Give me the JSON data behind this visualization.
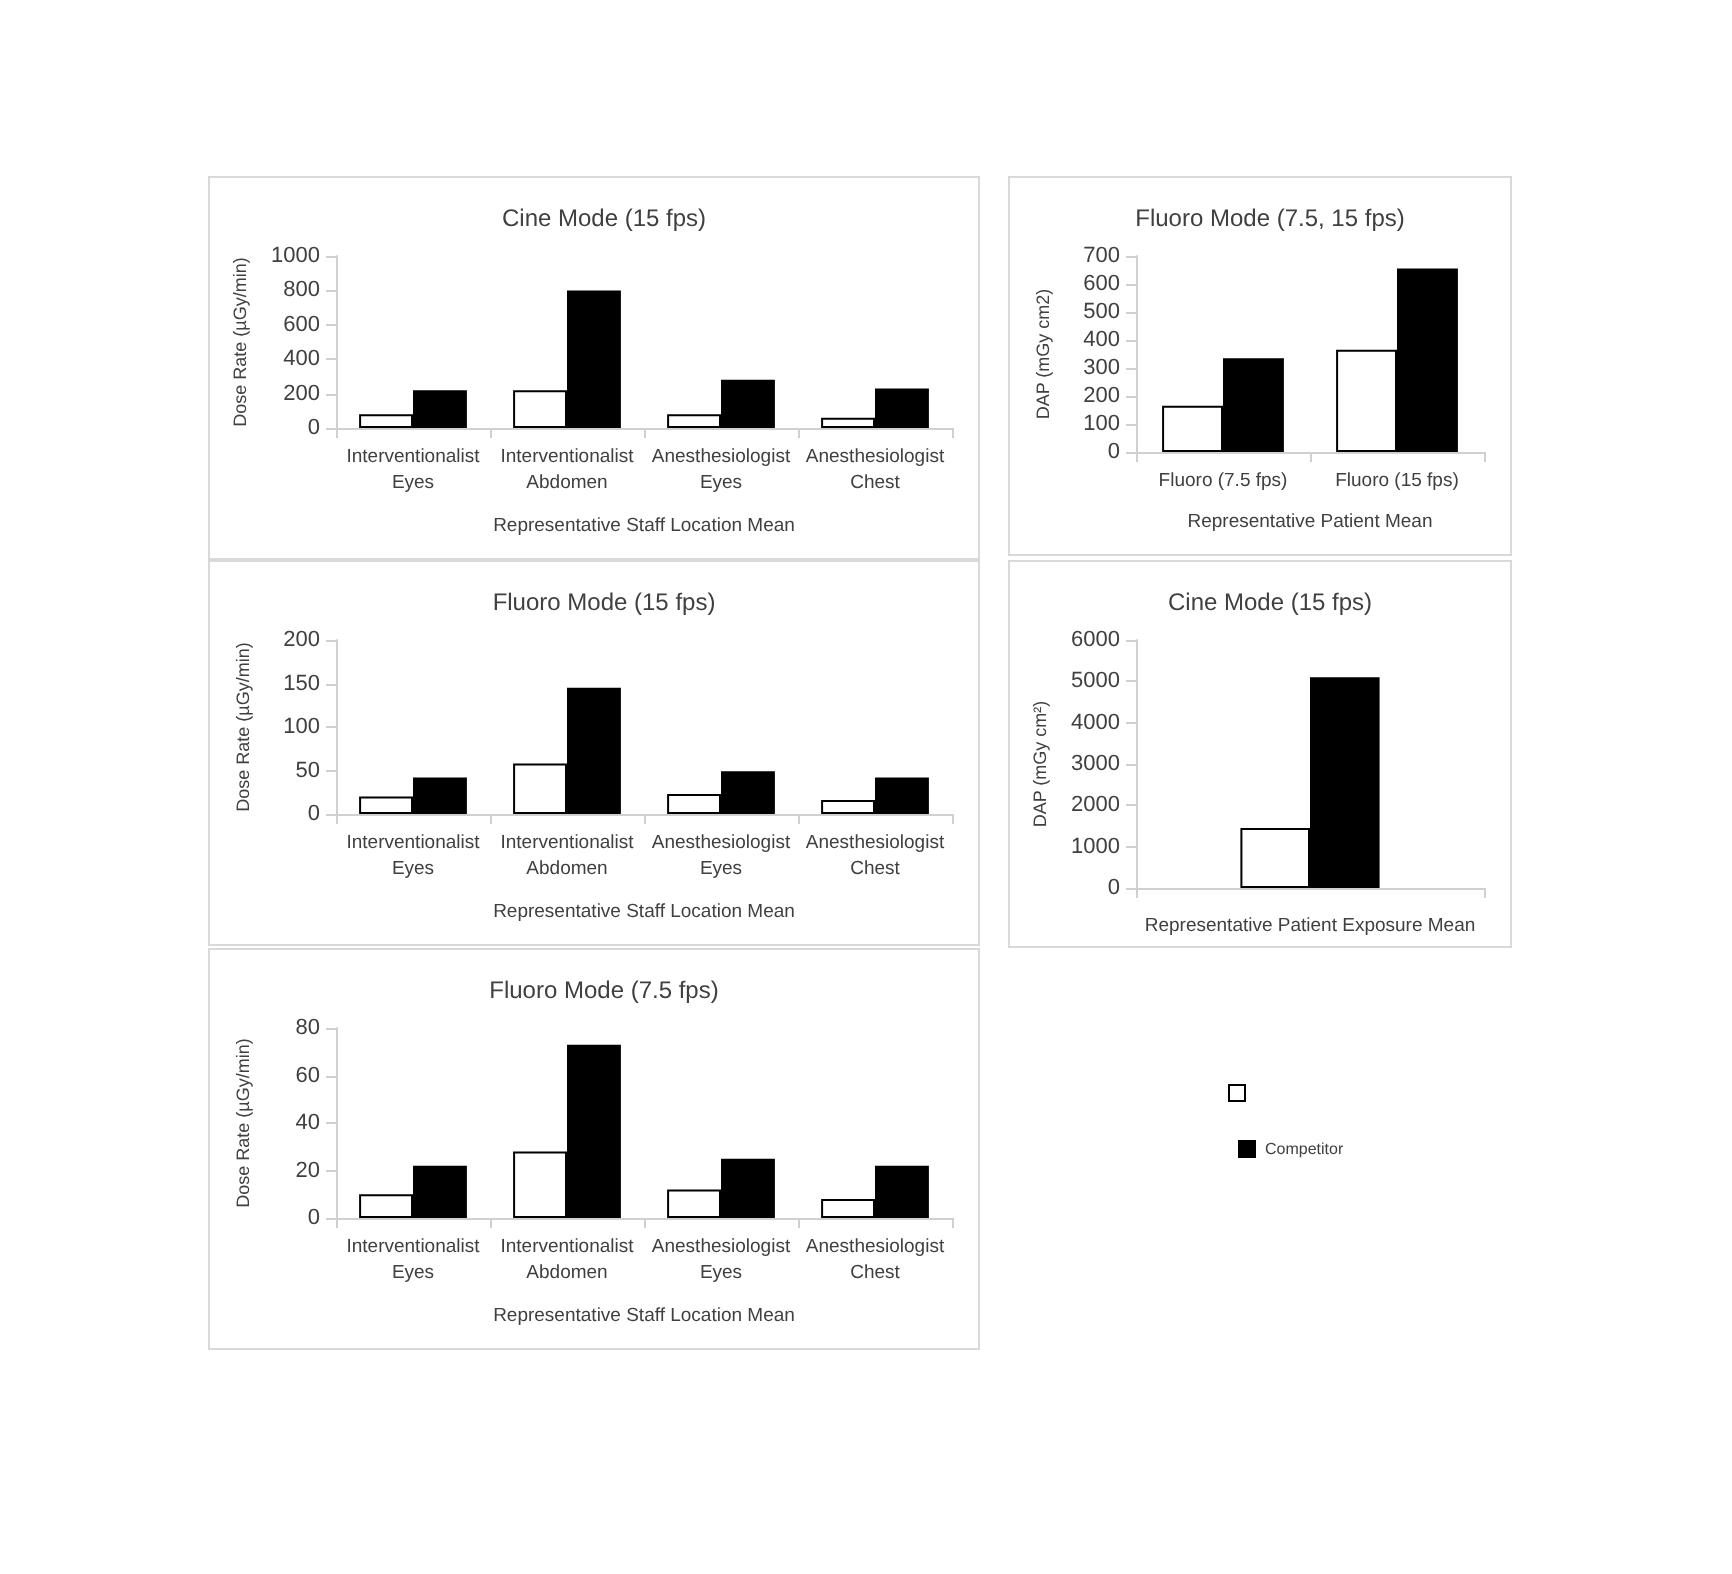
{
  "chart_data": [
    {
      "type": "bar",
      "title": "Cine Mode (15 fps)",
      "xlabel": "Representative Staff Location Mean",
      "ylabel": "Dose Rate (µGy/min)",
      "categories": [
        "Interventionalist\nEyes",
        "Interventionalist\nAbdomen",
        "Anesthesiologist\nEyes",
        "Anesthesiologist\nChest"
      ],
      "ylim": [
        0,
        1000
      ],
      "yticks": [
        0,
        200,
        400,
        600,
        800,
        1000
      ],
      "grid": false,
      "series": [
        {
          "color": "#ffffff",
          "values": [
            80,
            220,
            80,
            60
          ]
        },
        {
          "color": "#000000",
          "values": [
            220,
            800,
            280,
            230
          ]
        }
      ]
    },
    {
      "type": "bar",
      "title": "Fluoro Mode (7.5, 15 fps)",
      "xlabel": "Representative Patient Mean",
      "ylabel": "DAP (mGy cm2)",
      "categories": [
        "Fluoro (7.5 fps)",
        "Fluoro (15 fps)"
      ],
      "ylim": [
        0,
        700
      ],
      "yticks": [
        0,
        100,
        200,
        300,
        400,
        500,
        600,
        700
      ],
      "grid": false,
      "series": [
        {
          "color": "#ffffff",
          "values": [
            165,
            365
          ]
        },
        {
          "color": "#000000",
          "values": [
            335,
            655
          ]
        }
      ]
    },
    {
      "type": "bar",
      "title": "Fluoro Mode (15 fps)",
      "xlabel": "Representative Staff Location Mean",
      "ylabel": "Dose Rate (µGy/min)",
      "categories": [
        "Interventionalist\nEyes",
        "Interventionalist\nAbdomen",
        "Anesthesiologist\nEyes",
        "Anesthesiologist\nChest"
      ],
      "ylim": [
        0,
        200
      ],
      "yticks": [
        0,
        50,
        100,
        150,
        200
      ],
      "grid": false,
      "series": [
        {
          "color": "#ffffff",
          "values": [
            20,
            58,
            23,
            16
          ]
        },
        {
          "color": "#000000",
          "values": [
            42,
            145,
            49,
            42
          ]
        }
      ]
    },
    {
      "type": "bar",
      "title": "Cine Mode (15 fps)",
      "xlabel": "Representative Patient Exposure Mean",
      "ylabel": "DAP (mGy cm²)",
      "categories": [
        null
      ],
      "ylim": [
        0,
        6000
      ],
      "yticks": [
        0,
        1000,
        2000,
        3000,
        4000,
        5000,
        6000
      ],
      "grid": false,
      "series": [
        {
          "color": "#ffffff",
          "values": [
            1450
          ]
        },
        {
          "color": "#000000",
          "values": [
            5100
          ]
        }
      ]
    },
    {
      "type": "bar",
      "title": "Fluoro Mode (7.5 fps)",
      "xlabel": "Representative Staff Location Mean",
      "ylabel": "Dose Rate (µGy/min)",
      "categories": [
        "Interventionalist\nEyes",
        "Interventionalist\nAbdomen",
        "Anesthesiologist\nEyes",
        "Anesthesiologist\nChest"
      ],
      "ylim": [
        0,
        80
      ],
      "yticks": [
        0,
        20,
        40,
        60,
        80
      ],
      "grid": false,
      "legend": "right",
      "series": [
        {
          "color": "#ffffff",
          "values": [
            10,
            28,
            12,
            8
          ]
        },
        {
          "name": "Competitor",
          "color": "#000000",
          "values": [
            22,
            73,
            25,
            22
          ]
        }
      ]
    }
  ]
}
